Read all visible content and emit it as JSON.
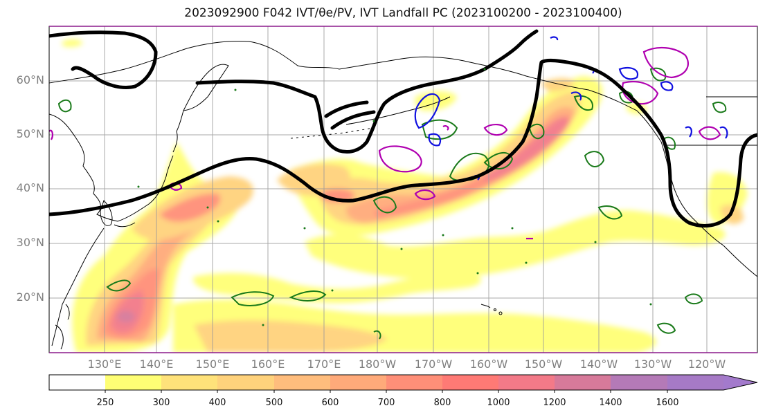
{
  "title": "2023092900 F042 IVT/θe/PV, IVT Landfall PC (2023100200 - 2023100400)",
  "map": {
    "extent": {
      "lon": [
        120,
        247
      ],
      "lat": [
        10,
        70
      ]
    },
    "lat_labels": [
      "60°N",
      "50°N",
      "40°N",
      "30°N",
      "20°N"
    ],
    "lon_labels": [
      "130°E",
      "140°E",
      "150°E",
      "160°E",
      "170°E",
      "180°W",
      "170°W",
      "160°W",
      "150°W",
      "140°W",
      "130°W",
      "120°W"
    ],
    "grid": true,
    "overlay_colors": {
      "height_contour": "#000000",
      "theta_e": "#1a7a1a",
      "pv_low": "#1010e0",
      "pv_high": "#b000b0",
      "coast": "#000000"
    }
  },
  "colorbar": {
    "levels": [
      "250",
      "300",
      "400",
      "500",
      "600",
      "700",
      "800",
      "1000",
      "1200",
      "1400",
      "1600"
    ],
    "colors": [
      "#ffffff",
      "#ffff75",
      "#ffe27a",
      "#ffd27c",
      "#ffbd7d",
      "#ffaa7a",
      "#ff8f78",
      "#ff7a75",
      "#f37a88",
      "#d77a9a",
      "#b47ab7",
      "#a67ac6",
      "#a37acc"
    ],
    "extend": "max"
  }
}
